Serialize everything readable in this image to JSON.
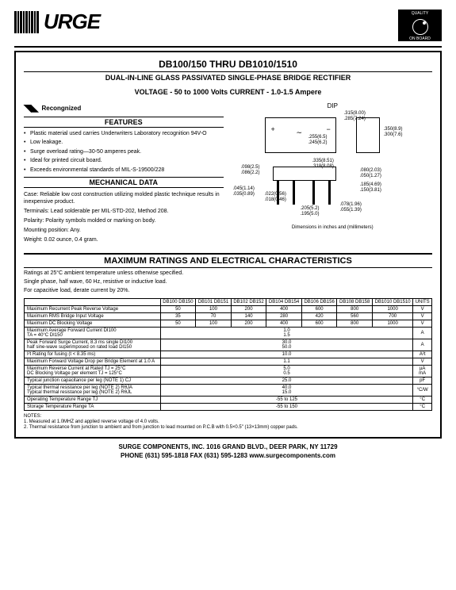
{
  "header": {
    "logo_text": "URGE",
    "quality_top": "QUALITY",
    "quality_bottom": "ON BOARD"
  },
  "title": "DB100/150 THRU DB1010/1510",
  "subtitle_line1": "DUAL-IN-LINE GLASS PASSIVATED SINGLE-PHASE BRIDGE RECTIFIER",
  "subtitle_line2": "VOLTAGE - 50 to 1000 Volts    CURRENT - 1.0-1.5 Ampere",
  "recognized": "Recongnized",
  "features_head": "FEATURES",
  "features": [
    "Plastic material used carries Underwriters Laboratory recognition 94V-O",
    "Low leakage.",
    "Surge overload rating—30-50 amperes peak.",
    "Ideal for printed circuit board.",
    "Exceeds environmental standards of MIL-S-19500/228"
  ],
  "mech_head": "MECHANICAL DATA",
  "mech": {
    "case": "Case: Reliable low cost construction utilizing molded plastic technique results in inexpensive product.",
    "terminals": "Terminals: Lead solderable per MIL-STD-202, Method 208.",
    "polarity": "Polarity: Polarity symbols molded or marking on body.",
    "mounting": "Mounting position: Any.",
    "weight": "Weight: 0.02 ounce, 0.4 gram."
  },
  "dip_label": "DIP",
  "dim_caption": "Dimensions in inches and (millimeters)",
  "dims": {
    "d1": ".315(8.00)",
    "d2": ".285(7.24)",
    "d3": ".255(6.5)",
    "d4": ".245(6.2)",
    "d5": ".350(8.9)",
    "d6": ".300(7.6)",
    "d7": ".098(2.5)",
    "d8": ".086(2.2)",
    "d9": ".335(8.51)",
    "d10": ".318(8.08)",
    "d11": ".080(2.03)",
    "d12": ".050(1.27)",
    "d13": ".045(1.14)",
    "d14": ".035(0.89)",
    "d15": ".022(0.56)",
    "d16": ".018(0.46)",
    "d17": ".185(4.69)",
    "d18": ".150(3.81)",
    "d19": ".205(5.2)",
    "d20": ".195(5.0)",
    "d21": ".078(1.96)",
    "d22": ".055(1.39)"
  },
  "ratings_head": "MAXIMUM RATINGS AND ELECTRICAL CHARACTERISTICS",
  "ratings_notes": [
    "Ratings at 25°C ambient temperature unless otherwise specified.",
    "Single phase, half wave, 60 Hz, resistive or inductive load.",
    "For capacitive load, derate current by 20%."
  ],
  "table": {
    "columns": [
      "",
      "DB100 DB150",
      "DB101 DB151",
      "DB102 DB152",
      "DB104 DB154",
      "DB106 DB156",
      "DB108 DB158",
      "DB1010 DB1510",
      "UNITS"
    ],
    "rows": [
      {
        "param": "Maximum Recurrent Peak Reverse Voltage",
        "vals": [
          "50",
          "100",
          "200",
          "400",
          "600",
          "800",
          "1000"
        ],
        "unit": "V"
      },
      {
        "param": "Maximum RMS Bridge Input Voltage",
        "vals": [
          "35",
          "70",
          "140",
          "280",
          "420",
          "560",
          "700"
        ],
        "unit": "V"
      },
      {
        "param": "Maximum DC Blocking Voltage",
        "vals": [
          "50",
          "100",
          "200",
          "400",
          "600",
          "800",
          "1000"
        ],
        "unit": "V"
      },
      {
        "param": "Maximum Average Forward Current        DI100\nTA = 40°C                                             DI150",
        "span": "1.0\n1.5",
        "unit": "A"
      },
      {
        "param": "Peak Forward Surge Current, 8.3 ms single  DI100\nhalf sine-wave superimposed on rated load  DI150",
        "span": "30.0\n50.0",
        "unit": "A"
      },
      {
        "param": "I²t Rating for fusing (t < 8.35 ms)",
        "span": "10.0",
        "unit": "A²t"
      },
      {
        "param": "Maximum Forward Voltage Drop per Bridge Element at 1.0 A",
        "span": "1.1",
        "unit": "V"
      },
      {
        "param": "Maximum Reverse Current at Rated   TJ = 25°C\nDC Blocking Voltage per element    TJ = 125°C",
        "span": "5.0\n0.5",
        "unit": "µA\nmA"
      },
      {
        "param": "Typical junction capacitance per leg (NOTE 1) CJ",
        "span": "25.0",
        "unit": "pF"
      },
      {
        "param": "Typical thermal resistance per leg (NOTE 2) RθJA\nTypical thermal resistance per leg (NOTE 2) RθJL",
        "span": "40.0\n15.0",
        "unit": "°C/W"
      },
      {
        "param": "Operating Temperature Range TJ",
        "span": "-55 to 125",
        "unit": "°C"
      },
      {
        "param": "Storage Temperature Range    TA",
        "span": "-55 to 150",
        "unit": "°C"
      }
    ]
  },
  "notes_head": "NOTES:",
  "notes": [
    "1. Measured at 1.0MHZ and applied reverse voltage of 4.0 volts.",
    "2. Thermal resistance from junction to ambient and from junction to lead mounted on P.C.B with 0.5×0.5\" (13×13mm) copper pads."
  ],
  "footer": {
    "line1": "SURGE COMPONENTS, INC.   1016 GRAND BLVD., DEER PARK, NY  11729",
    "line2": "PHONE (631) 595-1818      FAX  (631) 595-1283    www.surgecomponents.com"
  }
}
